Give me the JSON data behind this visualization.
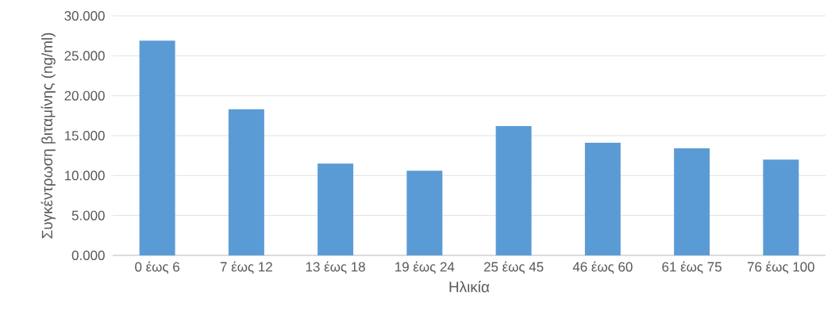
{
  "chart_data": {
    "type": "bar",
    "xlabel": "Ηλικία",
    "ylabel": "Συγκέντρωση βιταμίνης (ng/ml)",
    "categories": [
      "0 έως 6",
      "7 έως 12",
      "13 έως 18",
      "19 έως 24",
      "25 έως 45",
      "46 έως 60",
      "61 έως 75",
      "76 έως 100"
    ],
    "values": [
      26.9,
      18.3,
      11.5,
      10.6,
      16.2,
      14.1,
      13.4,
      12.0
    ],
    "color": "#5b9bd5",
    "ylim": [
      0,
      30
    ],
    "yticks": [
      {
        "value": 0,
        "label": "0.000"
      },
      {
        "value": 5,
        "label": "5.000"
      },
      {
        "value": 10,
        "label": "10.000"
      },
      {
        "value": 15,
        "label": "15.000"
      },
      {
        "value": 20,
        "label": "20.000"
      },
      {
        "value": 25,
        "label": "25.000"
      },
      {
        "value": 30,
        "label": "30.000"
      }
    ],
    "grid": "y"
  }
}
